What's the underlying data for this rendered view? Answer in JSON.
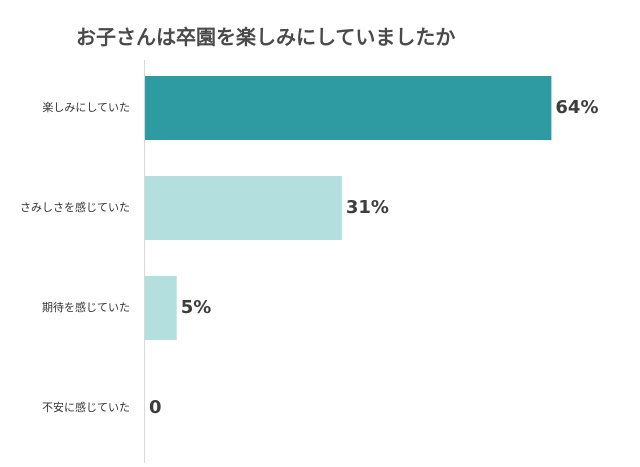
{
  "chart_data": {
    "type": "bar",
    "orientation": "horizontal",
    "title": "お子さんは卒園を楽しみにしていましたか",
    "xlabel": "",
    "ylabel": "",
    "xlim": [
      0,
      100
    ],
    "grid": false,
    "legend": "none",
    "categories": [
      "楽しみにしていた",
      "さみしさを感じていた",
      "期待を感じていた",
      "不安に感じていた"
    ],
    "values": [
      64,
      31,
      5,
      0
    ],
    "value_labels": [
      "64%",
      "31%",
      "5%",
      "0"
    ],
    "colors": [
      "#2e9aa2",
      "#b3e0de",
      "#b3e0de",
      "#b3e0de"
    ]
  }
}
